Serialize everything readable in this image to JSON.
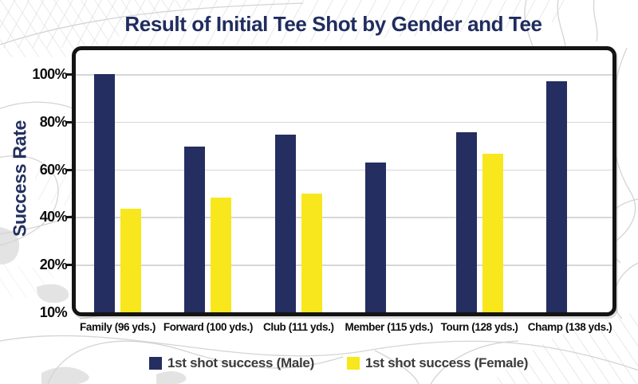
{
  "title": "Result of Initial Tee Shot by Gender and Tee",
  "y_axis": {
    "label": "Success Rate"
  },
  "colors": {
    "male_bar": "#252e60",
    "female_bar": "#f8e71c",
    "title_text": "#1f2c5e",
    "legend_text": "#3b3b3b",
    "gridline": "#d7d7d7",
    "frame_border": "#141414"
  },
  "chart_data": {
    "type": "bar",
    "title": "Result of Initial Tee Shot by Gender and Tee",
    "xlabel": "",
    "ylabel": "Success Rate",
    "ylim": [
      0,
      100
    ],
    "grid": "horizontal",
    "legend_position": "bottom",
    "y_tick_labels": [
      "100%",
      "80%",
      "60%",
      "40%",
      "20%",
      "10%"
    ],
    "gridline_values": [
      100,
      80,
      60,
      40,
      20
    ],
    "categories": [
      "Family (96 yds.)",
      "Forward (100 yds.)",
      "Club (111 yds.)",
      "Member (115 yds.)",
      "Tourn (128 yds.)",
      "Champ (138 yds.)"
    ],
    "series": [
      {
        "name": "1st shot success (Male)",
        "color": "#252e60",
        "values": [
          100,
          69.5,
          74.5,
          63,
          75.5,
          97
        ]
      },
      {
        "name": "1st shot success (Female)",
        "color": "#f8e71c",
        "values": [
          43.5,
          48,
          50,
          null,
          66.5,
          null
        ]
      }
    ]
  }
}
